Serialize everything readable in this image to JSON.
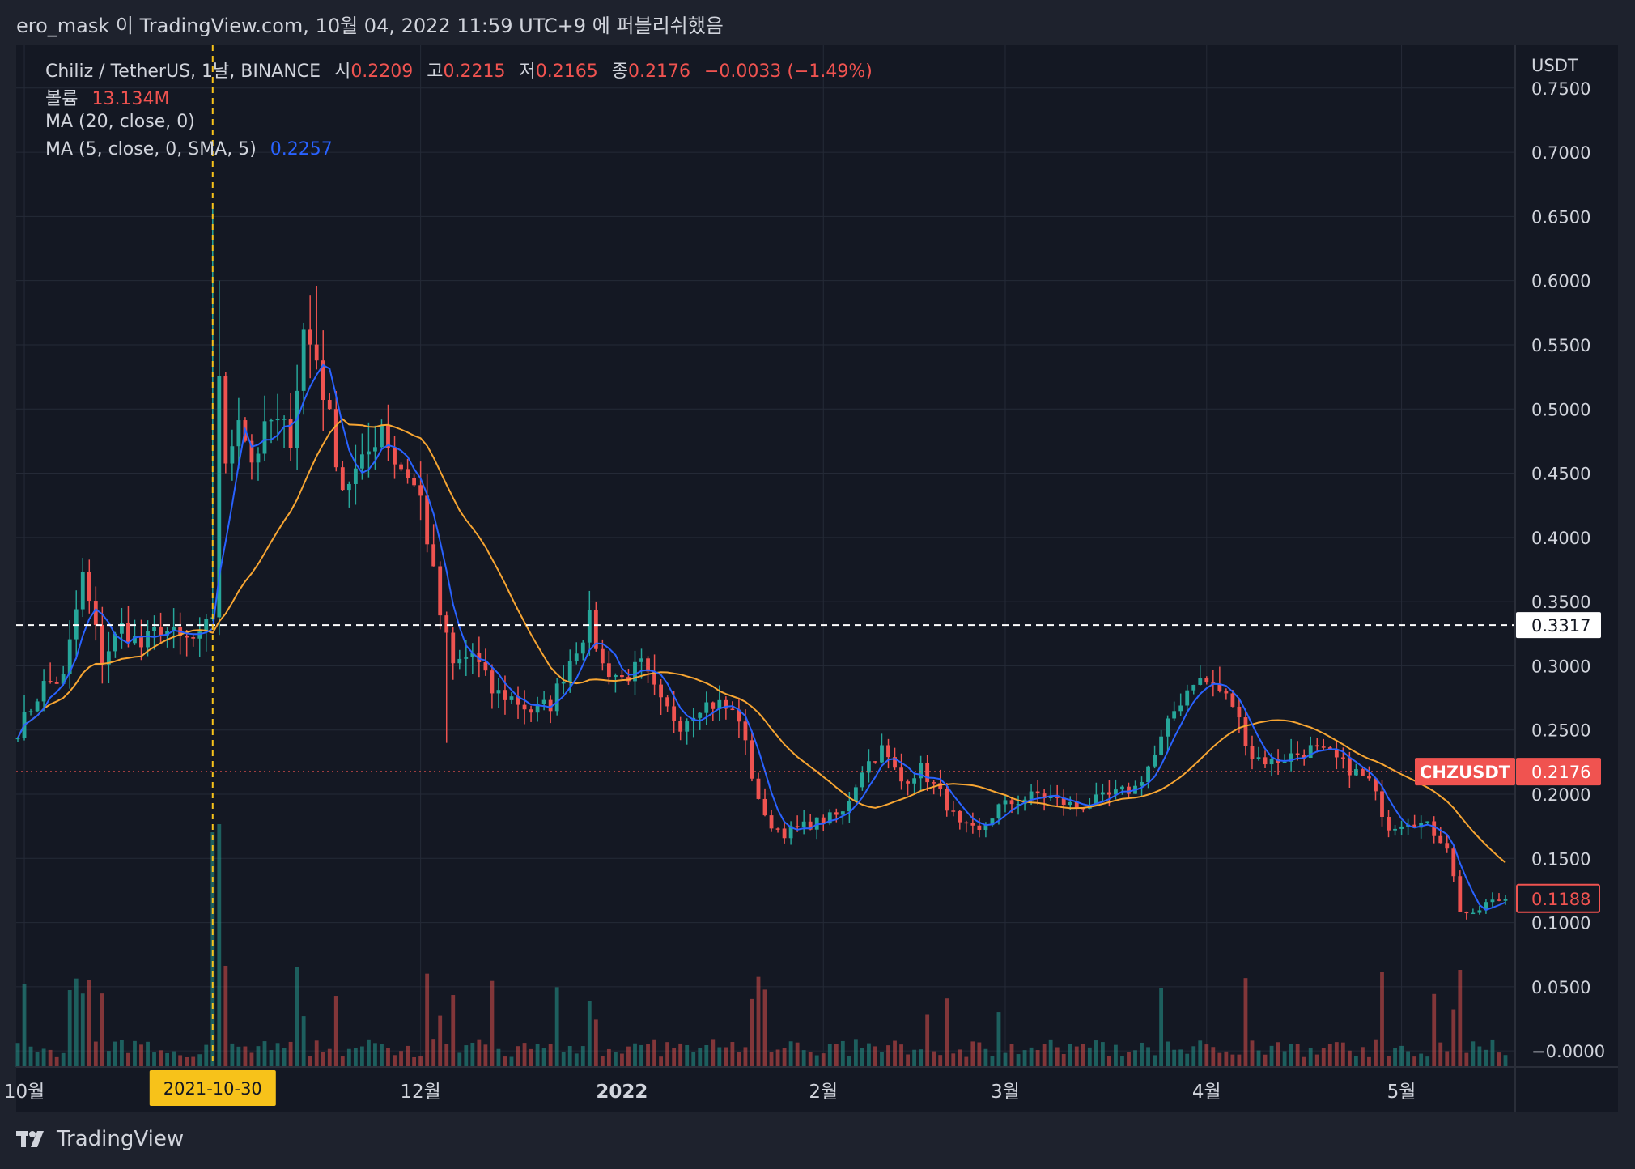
{
  "header": {
    "caption": "ero_mask 이 TradingView.com, 10월 04, 2022 11:59 UTC+9 에 퍼블리쉬했음"
  },
  "legend": {
    "symbol": "Chiliz / TetherUS, 1날, BINANCE",
    "open_label": "시",
    "open": "0.2209",
    "high_label": "고",
    "high": "0.2215",
    "low_label": "저",
    "low": "0.2165",
    "close_label": "종",
    "close": "0.2176",
    "change": "−0.0033 (−1.49%)",
    "volume_label": "볼륨",
    "volume": "13.134M",
    "ma20_label": "MA (20, close, 0)",
    "ma5_label": "MA (5, close, 0, SMA, 5)",
    "ma5_value": "0.2257"
  },
  "branding": {
    "name": "TradingView"
  },
  "colors": {
    "up": "#26a69a",
    "down": "#ef5350",
    "ma20": "#f7a532",
    "ma5": "#2962ff",
    "crosshair": "#f7c21a",
    "background": "#141823",
    "grid": "#252a37"
  },
  "chart_data": {
    "type": "candlestick",
    "symbol": "CHZUSDT",
    "price_axis_unit": "USDT",
    "y_ticks": [
      "0.7500",
      "0.7000",
      "0.6500",
      "0.6000",
      "0.5500",
      "0.5000",
      "0.4500",
      "0.4000",
      "0.3500",
      "0.3000",
      "0.2500",
      "0.2000",
      "0.1500",
      "0.1000",
      "0.0500",
      "−0.0000"
    ],
    "ylim": [
      -0.0125,
      0.7833
    ],
    "x_ticks": [
      {
        "label": "10월",
        "date": "2021-10-01"
      },
      {
        "label": "12월",
        "date": "2021-12-01"
      },
      {
        "label": "2022",
        "date": "2022-01-01"
      },
      {
        "label": "2월",
        "date": "2022-02-01"
      },
      {
        "label": "3월",
        "date": "2022-03-01"
      },
      {
        "label": "4월",
        "date": "2022-04-01"
      },
      {
        "label": "5월",
        "date": "2022-05-01"
      }
    ],
    "crosshair": {
      "date_label": "2021-10-30",
      "price_label": "0.3317",
      "price": 0.3317
    },
    "last_price": {
      "label": "CHZUSDT",
      "value": 0.2176,
      "value_label": "0.2176"
    },
    "marked_price": {
      "value": 0.1188,
      "value_label": "0.1188"
    },
    "close_path": [
      {
        "date": "2021-09-30",
        "close": 0.25
      },
      {
        "date": "2021-10-04",
        "close": 0.285
      },
      {
        "date": "2021-10-07",
        "close": 0.29
      },
      {
        "date": "2021-10-10",
        "close": 0.37
      },
      {
        "date": "2021-10-13",
        "close": 0.305
      },
      {
        "date": "2021-10-16",
        "close": 0.33
      },
      {
        "date": "2021-10-19",
        "close": 0.315
      },
      {
        "date": "2021-10-22",
        "close": 0.33
      },
      {
        "date": "2021-10-25",
        "close": 0.32
      },
      {
        "date": "2021-10-28",
        "close": 0.32
      },
      {
        "date": "2021-10-30",
        "close": 0.34
      },
      {
        "date": "2021-10-31",
        "close": 0.53
      },
      {
        "date": "2021-11-01",
        "close": 0.45
      },
      {
        "date": "2021-11-03",
        "close": 0.5
      },
      {
        "date": "2021-11-05",
        "close": 0.46
      },
      {
        "date": "2021-11-08",
        "close": 0.49
      },
      {
        "date": "2021-11-11",
        "close": 0.48
      },
      {
        "date": "2021-11-13",
        "close": 0.56
      },
      {
        "date": "2021-11-15",
        "close": 0.54
      },
      {
        "date": "2021-11-17",
        "close": 0.49
      },
      {
        "date": "2021-11-19",
        "close": 0.44
      },
      {
        "date": "2021-11-22",
        "close": 0.455
      },
      {
        "date": "2021-11-25",
        "close": 0.49
      },
      {
        "date": "2021-11-27",
        "close": 0.46
      },
      {
        "date": "2021-11-29",
        "close": 0.45
      },
      {
        "date": "2021-12-01",
        "close": 0.43
      },
      {
        "date": "2021-12-04",
        "close": 0.34
      },
      {
        "date": "2021-12-06",
        "close": 0.3
      },
      {
        "date": "2021-12-09",
        "close": 0.31
      },
      {
        "date": "2021-12-12",
        "close": 0.28
      },
      {
        "date": "2021-12-15",
        "close": 0.275
      },
      {
        "date": "2021-12-18",
        "close": 0.265
      },
      {
        "date": "2021-12-21",
        "close": 0.27
      },
      {
        "date": "2021-12-24",
        "close": 0.305
      },
      {
        "date": "2021-12-27",
        "close": 0.335
      },
      {
        "date": "2021-12-29",
        "close": 0.3
      },
      {
        "date": "2022-01-01",
        "close": 0.29
      },
      {
        "date": "2022-01-04",
        "close": 0.3
      },
      {
        "date": "2022-01-07",
        "close": 0.27
      },
      {
        "date": "2022-01-10",
        "close": 0.255
      },
      {
        "date": "2022-01-13",
        "close": 0.27
      },
      {
        "date": "2022-01-16",
        "close": 0.27
      },
      {
        "date": "2022-01-19",
        "close": 0.26
      },
      {
        "date": "2022-01-21",
        "close": 0.215
      },
      {
        "date": "2022-01-23",
        "close": 0.18
      },
      {
        "date": "2022-01-26",
        "close": 0.17
      },
      {
        "date": "2022-01-29",
        "close": 0.175
      },
      {
        "date": "2022-02-01",
        "close": 0.18
      },
      {
        "date": "2022-02-04",
        "close": 0.185
      },
      {
        "date": "2022-02-07",
        "close": 0.22
      },
      {
        "date": "2022-02-10",
        "close": 0.235
      },
      {
        "date": "2022-02-13",
        "close": 0.21
      },
      {
        "date": "2022-02-16",
        "close": 0.22
      },
      {
        "date": "2022-02-19",
        "close": 0.2
      },
      {
        "date": "2022-02-22",
        "close": 0.175
      },
      {
        "date": "2022-02-25",
        "close": 0.17
      },
      {
        "date": "2022-02-28",
        "close": 0.19
      },
      {
        "date": "2022-03-03",
        "close": 0.195
      },
      {
        "date": "2022-03-06",
        "close": 0.2
      },
      {
        "date": "2022-03-09",
        "close": 0.195
      },
      {
        "date": "2022-03-12",
        "close": 0.19
      },
      {
        "date": "2022-03-15",
        "close": 0.195
      },
      {
        "date": "2022-03-18",
        "close": 0.2
      },
      {
        "date": "2022-03-21",
        "close": 0.205
      },
      {
        "date": "2022-03-24",
        "close": 0.23
      },
      {
        "date": "2022-03-27",
        "close": 0.265
      },
      {
        "date": "2022-03-30",
        "close": 0.29
      },
      {
        "date": "2022-04-02",
        "close": 0.285
      },
      {
        "date": "2022-04-05",
        "close": 0.27
      },
      {
        "date": "2022-04-08",
        "close": 0.23
      },
      {
        "date": "2022-04-11",
        "close": 0.225
      },
      {
        "date": "2022-04-14",
        "close": 0.23
      },
      {
        "date": "2022-04-17",
        "close": 0.235
      },
      {
        "date": "2022-04-20",
        "close": 0.23
      },
      {
        "date": "2022-04-23",
        "close": 0.22
      },
      {
        "date": "2022-04-26",
        "close": 0.21
      },
      {
        "date": "2022-04-29",
        "close": 0.175
      },
      {
        "date": "2022-05-02",
        "close": 0.18
      },
      {
        "date": "2022-05-05",
        "close": 0.175
      },
      {
        "date": "2022-05-08",
        "close": 0.16
      },
      {
        "date": "2022-05-10",
        "close": 0.11
      },
      {
        "date": "2022-05-12",
        "close": 0.105
      },
      {
        "date": "2022-05-14",
        "close": 0.115
      },
      {
        "date": "2022-05-17",
        "close": 0.1188
      }
    ]
  }
}
